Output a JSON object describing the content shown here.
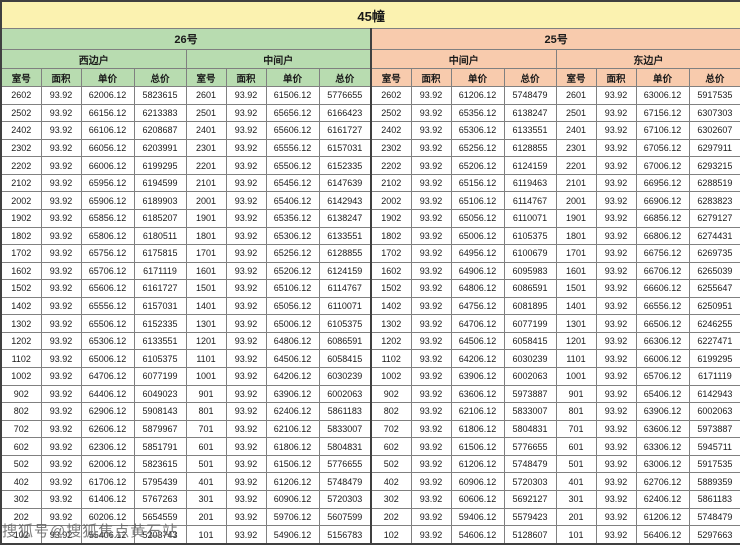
{
  "title": "45幢",
  "watermark": "搜狐号@搜狐焦点黄石站",
  "colors": {
    "header_yellow": "#fbf2b0",
    "header_green": "#b8dcb0",
    "header_peach": "#f8cbad",
    "grid_border": "#808080",
    "section_border": "#404040"
  },
  "groups": [
    {
      "building": "26号",
      "units": [
        "西边户",
        "中间户"
      ]
    },
    {
      "building": "25号",
      "units": [
        "中间户",
        "东边户"
      ]
    }
  ],
  "column_headers": [
    "室号",
    "面积",
    "单价",
    "总价"
  ],
  "rows": [
    [
      [
        "2602",
        "93.92",
        "62006.12",
        "5823615"
      ],
      [
        "2601",
        "93.92",
        "61506.12",
        "5776655"
      ],
      [
        "2602",
        "93.92",
        "61206.12",
        "5748479"
      ],
      [
        "2601",
        "93.92",
        "63006.12",
        "5917535"
      ]
    ],
    [
      [
        "2502",
        "93.92",
        "66156.12",
        "6213383"
      ],
      [
        "2501",
        "93.92",
        "65656.12",
        "6166423"
      ],
      [
        "2502",
        "93.92",
        "65356.12",
        "6138247"
      ],
      [
        "2501",
        "93.92",
        "67156.12",
        "6307303"
      ]
    ],
    [
      [
        "2402",
        "93.92",
        "66106.12",
        "6208687"
      ],
      [
        "2401",
        "93.92",
        "65606.12",
        "6161727"
      ],
      [
        "2402",
        "93.92",
        "65306.12",
        "6133551"
      ],
      [
        "2401",
        "93.92",
        "67106.12",
        "6302607"
      ]
    ],
    [
      [
        "2302",
        "93.92",
        "66056.12",
        "6203991"
      ],
      [
        "2301",
        "93.92",
        "65556.12",
        "6157031"
      ],
      [
        "2302",
        "93.92",
        "65256.12",
        "6128855"
      ],
      [
        "2301",
        "93.92",
        "67056.12",
        "6297911"
      ]
    ],
    [
      [
        "2202",
        "93.92",
        "66006.12",
        "6199295"
      ],
      [
        "2201",
        "93.92",
        "65506.12",
        "6152335"
      ],
      [
        "2202",
        "93.92",
        "65206.12",
        "6124159"
      ],
      [
        "2201",
        "93.92",
        "67006.12",
        "6293215"
      ]
    ],
    [
      [
        "2102",
        "93.92",
        "65956.12",
        "6194599"
      ],
      [
        "2101",
        "93.92",
        "65456.12",
        "6147639"
      ],
      [
        "2102",
        "93.92",
        "65156.12",
        "6119463"
      ],
      [
        "2101",
        "93.92",
        "66956.12",
        "6288519"
      ]
    ],
    [
      [
        "2002",
        "93.92",
        "65906.12",
        "6189903"
      ],
      [
        "2001",
        "93.92",
        "65406.12",
        "6142943"
      ],
      [
        "2002",
        "93.92",
        "65106.12",
        "6114767"
      ],
      [
        "2001",
        "93.92",
        "66906.12",
        "6283823"
      ]
    ],
    [
      [
        "1902",
        "93.92",
        "65856.12",
        "6185207"
      ],
      [
        "1901",
        "93.92",
        "65356.12",
        "6138247"
      ],
      [
        "1902",
        "93.92",
        "65056.12",
        "6110071"
      ],
      [
        "1901",
        "93.92",
        "66856.12",
        "6279127"
      ]
    ],
    [
      [
        "1802",
        "93.92",
        "65806.12",
        "6180511"
      ],
      [
        "1801",
        "93.92",
        "65306.12",
        "6133551"
      ],
      [
        "1802",
        "93.92",
        "65006.12",
        "6105375"
      ],
      [
        "1801",
        "93.92",
        "66806.12",
        "6274431"
      ]
    ],
    [
      [
        "1702",
        "93.92",
        "65756.12",
        "6175815"
      ],
      [
        "1701",
        "93.92",
        "65256.12",
        "6128855"
      ],
      [
        "1702",
        "93.92",
        "64956.12",
        "6100679"
      ],
      [
        "1701",
        "93.92",
        "66756.12",
        "6269735"
      ]
    ],
    [
      [
        "1602",
        "93.92",
        "65706.12",
        "6171119"
      ],
      [
        "1601",
        "93.92",
        "65206.12",
        "6124159"
      ],
      [
        "1602",
        "93.92",
        "64906.12",
        "6095983"
      ],
      [
        "1601",
        "93.92",
        "66706.12",
        "6265039"
      ]
    ],
    [
      [
        "1502",
        "93.92",
        "65606.12",
        "6161727"
      ],
      [
        "1501",
        "93.92",
        "65106.12",
        "6114767"
      ],
      [
        "1502",
        "93.92",
        "64806.12",
        "6086591"
      ],
      [
        "1501",
        "93.92",
        "66606.12",
        "6255647"
      ]
    ],
    [
      [
        "1402",
        "93.92",
        "65556.12",
        "6157031"
      ],
      [
        "1401",
        "93.92",
        "65056.12",
        "6110071"
      ],
      [
        "1402",
        "93.92",
        "64756.12",
        "6081895"
      ],
      [
        "1401",
        "93.92",
        "66556.12",
        "6250951"
      ]
    ],
    [
      [
        "1302",
        "93.92",
        "65506.12",
        "6152335"
      ],
      [
        "1301",
        "93.92",
        "65006.12",
        "6105375"
      ],
      [
        "1302",
        "93.92",
        "64706.12",
        "6077199"
      ],
      [
        "1301",
        "93.92",
        "66506.12",
        "6246255"
      ]
    ],
    [
      [
        "1202",
        "93.92",
        "65306.12",
        "6133551"
      ],
      [
        "1201",
        "93.92",
        "64806.12",
        "6086591"
      ],
      [
        "1202",
        "93.92",
        "64506.12",
        "6058415"
      ],
      [
        "1201",
        "93.92",
        "66306.12",
        "6227471"
      ]
    ],
    [
      [
        "1102",
        "93.92",
        "65006.12",
        "6105375"
      ],
      [
        "1101",
        "93.92",
        "64506.12",
        "6058415"
      ],
      [
        "1102",
        "93.92",
        "64206.12",
        "6030239"
      ],
      [
        "1101",
        "93.92",
        "66006.12",
        "6199295"
      ]
    ],
    [
      [
        "1002",
        "93.92",
        "64706.12",
        "6077199"
      ],
      [
        "1001",
        "93.92",
        "64206.12",
        "6030239"
      ],
      [
        "1002",
        "93.92",
        "63906.12",
        "6002063"
      ],
      [
        "1001",
        "93.92",
        "65706.12",
        "6171119"
      ]
    ],
    [
      [
        "902",
        "93.92",
        "64406.12",
        "6049023"
      ],
      [
        "901",
        "93.92",
        "63906.12",
        "6002063"
      ],
      [
        "902",
        "93.92",
        "63606.12",
        "5973887"
      ],
      [
        "901",
        "93.92",
        "65406.12",
        "6142943"
      ]
    ],
    [
      [
        "802",
        "93.92",
        "62906.12",
        "5908143"
      ],
      [
        "801",
        "93.92",
        "62406.12",
        "5861183"
      ],
      [
        "802",
        "93.92",
        "62106.12",
        "5833007"
      ],
      [
        "801",
        "93.92",
        "63906.12",
        "6002063"
      ]
    ],
    [
      [
        "702",
        "93.92",
        "62606.12",
        "5879967"
      ],
      [
        "701",
        "93.92",
        "62106.12",
        "5833007"
      ],
      [
        "702",
        "93.92",
        "61806.12",
        "5804831"
      ],
      [
        "701",
        "93.92",
        "63606.12",
        "5973887"
      ]
    ],
    [
      [
        "602",
        "93.92",
        "62306.12",
        "5851791"
      ],
      [
        "601",
        "93.92",
        "61806.12",
        "5804831"
      ],
      [
        "602",
        "93.92",
        "61506.12",
        "5776655"
      ],
      [
        "601",
        "93.92",
        "63306.12",
        "5945711"
      ]
    ],
    [
      [
        "502",
        "93.92",
        "62006.12",
        "5823615"
      ],
      [
        "501",
        "93.92",
        "61506.12",
        "5776655"
      ],
      [
        "502",
        "93.92",
        "61206.12",
        "5748479"
      ],
      [
        "501",
        "93.92",
        "63006.12",
        "5917535"
      ]
    ],
    [
      [
        "402",
        "93.92",
        "61706.12",
        "5795439"
      ],
      [
        "401",
        "93.92",
        "61206.12",
        "5748479"
      ],
      [
        "402",
        "93.92",
        "60906.12",
        "5720303"
      ],
      [
        "401",
        "93.92",
        "62706.12",
        "5889359"
      ]
    ],
    [
      [
        "302",
        "93.92",
        "61406.12",
        "5767263"
      ],
      [
        "301",
        "93.92",
        "60906.12",
        "5720303"
      ],
      [
        "302",
        "93.92",
        "60606.12",
        "5692127"
      ],
      [
        "301",
        "93.92",
        "62406.12",
        "5861183"
      ]
    ],
    [
      [
        "202",
        "93.92",
        "60206.12",
        "5654559"
      ],
      [
        "201",
        "93.92",
        "59706.12",
        "5607599"
      ],
      [
        "202",
        "93.92",
        "59406.12",
        "5579423"
      ],
      [
        "201",
        "93.92",
        "61206.12",
        "5748479"
      ]
    ],
    [
      [
        "102",
        "93.92",
        "55406.12",
        "5203743"
      ],
      [
        "101",
        "93.92",
        "54906.12",
        "5156783"
      ],
      [
        "102",
        "93.92",
        "54606.12",
        "5128607"
      ],
      [
        "101",
        "93.92",
        "56406.12",
        "5297663"
      ]
    ]
  ]
}
